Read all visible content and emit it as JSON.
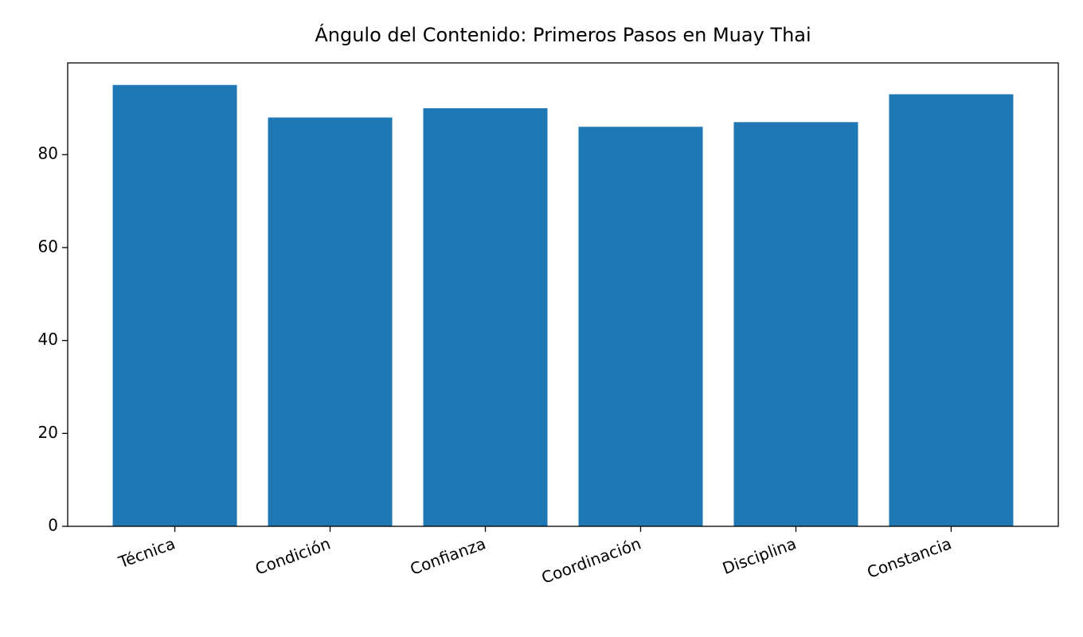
{
  "chart_data": {
    "type": "bar",
    "title": "Ángulo del Contenido: Primeros Pasos en Muay Thai",
    "categories": [
      "Técnica",
      "Condición",
      "Confianza",
      "Coordinación",
      "Disciplina",
      "Constancia"
    ],
    "values": [
      95,
      88,
      90,
      86,
      87,
      93
    ],
    "color": "#1f77b4",
    "ylim": [
      0,
      99.75
    ],
    "yticks": [
      0,
      20,
      40,
      60,
      80
    ]
  }
}
